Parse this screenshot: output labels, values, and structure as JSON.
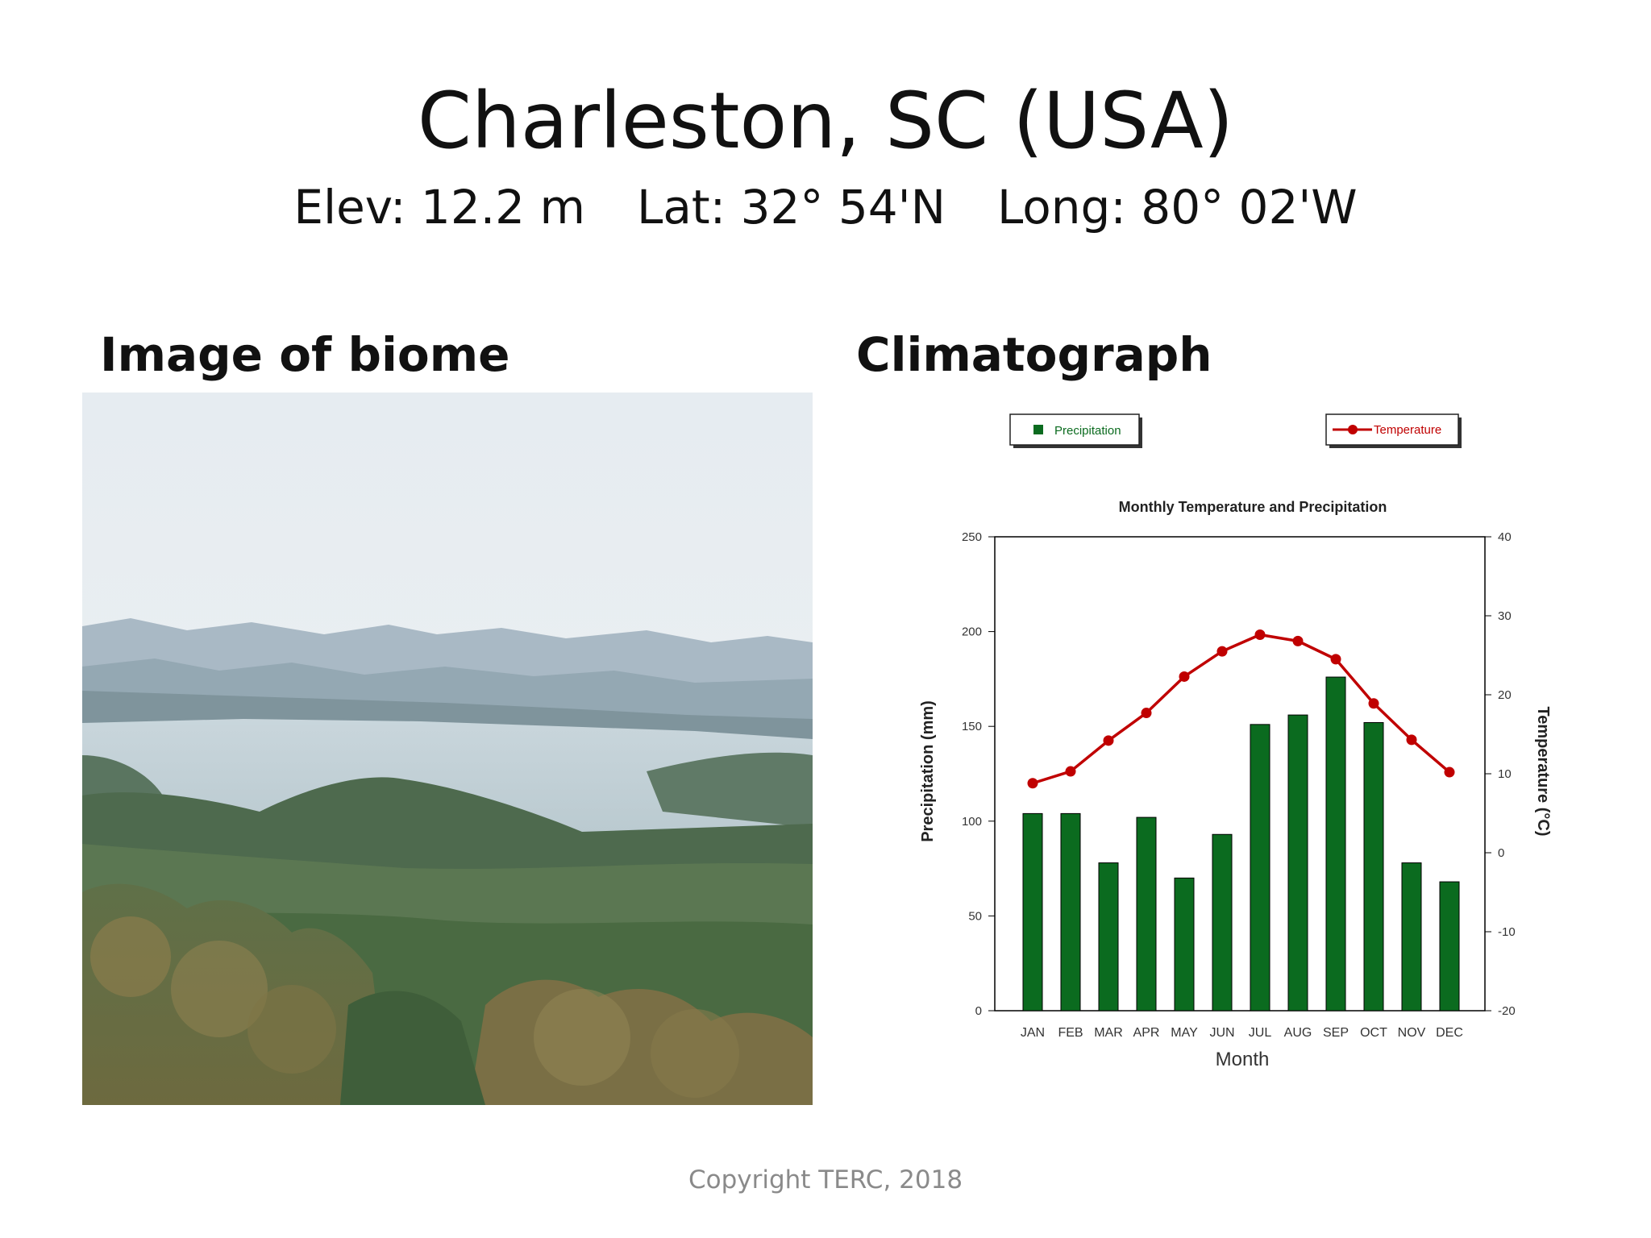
{
  "slide": {
    "title": "Charleston, SC (USA)",
    "elev": "Elev: 12.2 m",
    "lat": "Lat: 32° 54'N",
    "long": "Long: 80° 02'W",
    "biome_heading": "Image of biome",
    "climate_heading": "Climatograph",
    "copyright": "Copyright TERC, 2018"
  },
  "colors": {
    "precipitation": "#0b6b1f",
    "temperature": "#c00000",
    "axis": "#000000"
  },
  "chart_data": {
    "type": "bar",
    "title": "Monthly Temperature and Precipitation",
    "xlabel": "Month",
    "ylabel": "Precipitation (mm)",
    "y2label": "Temperature (°C)",
    "categories": [
      "JAN",
      "FEB",
      "MAR",
      "APR",
      "MAY",
      "JUN",
      "JUL",
      "AUG",
      "SEP",
      "OCT",
      "NOV",
      "DEC"
    ],
    "ylim": [
      0,
      250
    ],
    "y2lim": [
      -20,
      40
    ],
    "yticks": [
      0,
      50,
      100,
      150,
      200,
      250
    ],
    "y2ticks": [
      -20,
      -10,
      0,
      10,
      20,
      30,
      40
    ],
    "legend_position": "top",
    "series": [
      {
        "name": "Precipitation",
        "type": "bar",
        "axis": "left",
        "values": [
          104,
          104,
          78,
          102,
          70,
          93,
          151,
          156,
          176,
          152,
          78,
          68
        ]
      },
      {
        "name": "Temperature",
        "type": "line",
        "axis": "right",
        "values": [
          8.8,
          10.3,
          14.2,
          17.7,
          22.3,
          25.5,
          27.6,
          26.8,
          24.5,
          18.9,
          14.3,
          10.2
        ]
      }
    ]
  }
}
